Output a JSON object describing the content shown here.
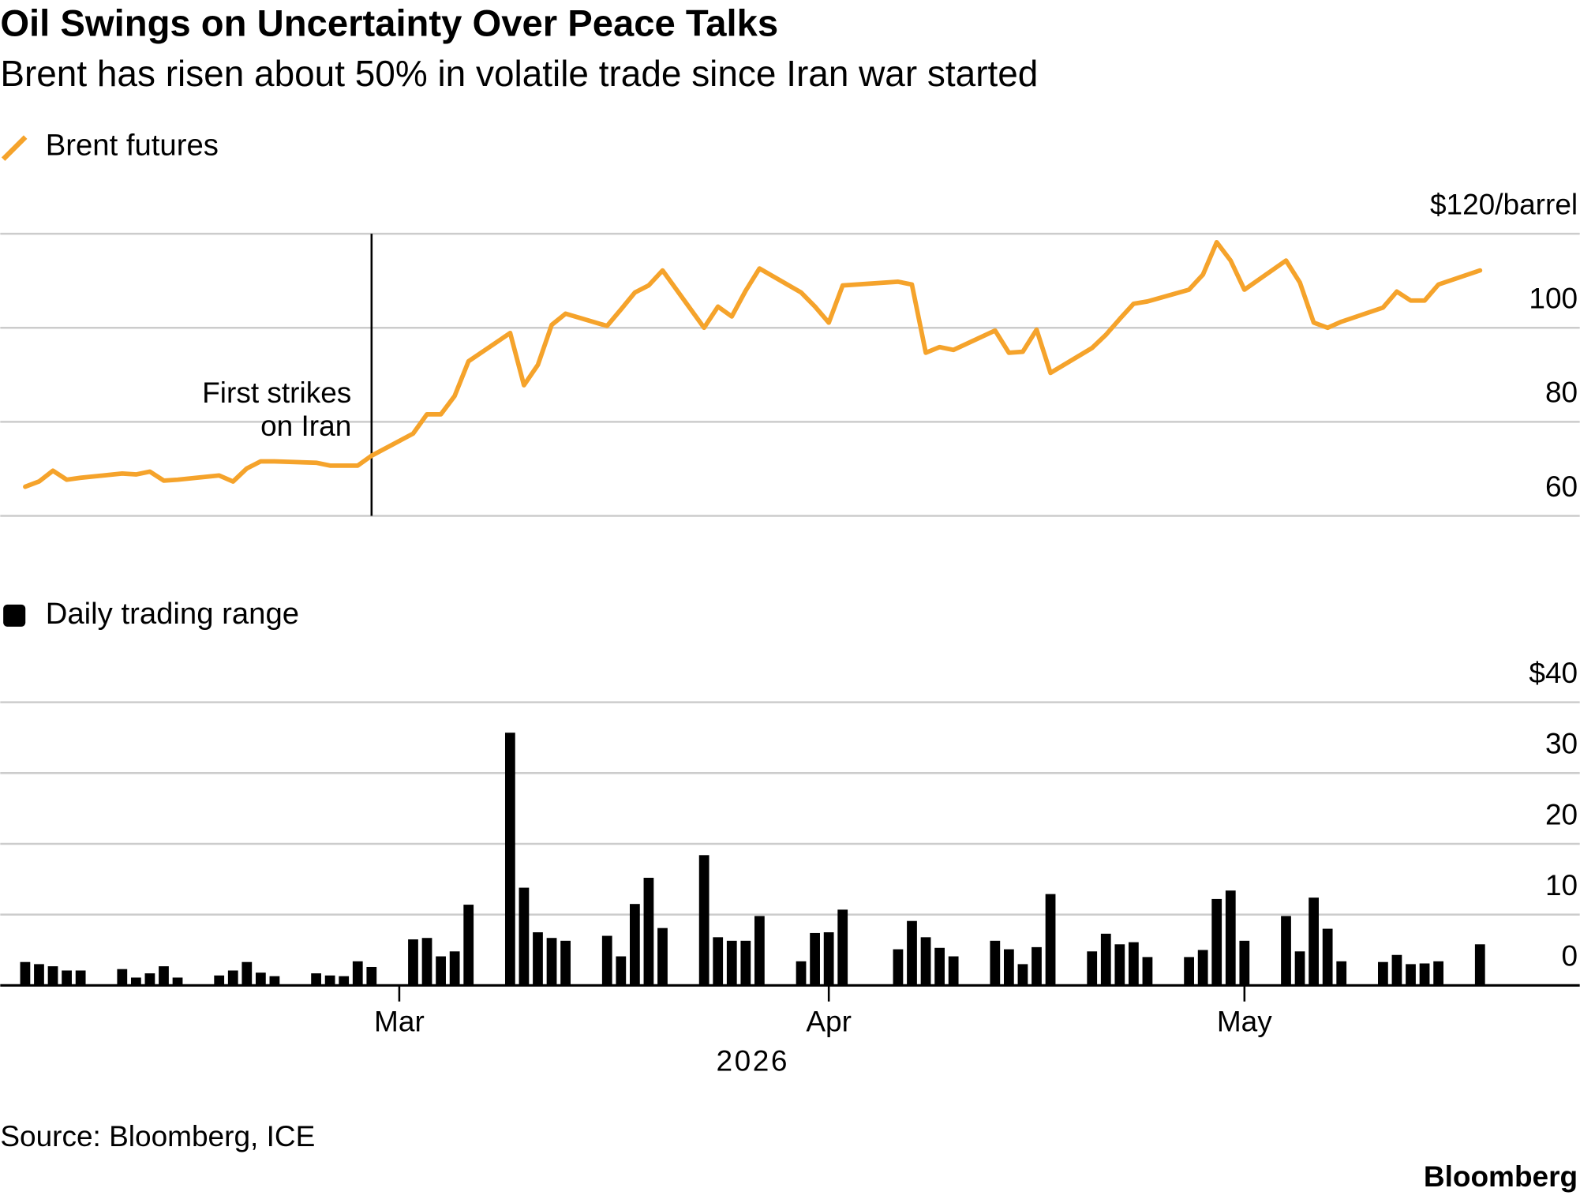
{
  "title": "Oil Swings on Uncertainty Over Peace Talks",
  "subtitle": "Brent has risen about 50% in volatile trade since Iran war started",
  "source": "Source: Bloomberg, ICE",
  "brand": "Bloomberg",
  "chart_data": [
    {
      "type": "line",
      "x": [
        33,
        34,
        35,
        36,
        37,
        40,
        41,
        42,
        43,
        44,
        47,
        48,
        49,
        50,
        51,
        54,
        55,
        56,
        57,
        58,
        61,
        62,
        63,
        64,
        65,
        68,
        69,
        70,
        71,
        72,
        75,
        76,
        77,
        78,
        79,
        82,
        83,
        84,
        85,
        86,
        89,
        90,
        91,
        92,
        96,
        97,
        98,
        99,
        100,
        103,
        104,
        105,
        106,
        107,
        110,
        111,
        112,
        113,
        114,
        117,
        118,
        119,
        120,
        121,
        124,
        125,
        126,
        127,
        128,
        131,
        132,
        133,
        134,
        135,
        138
      ],
      "series": [
        {
          "name": "Brent futures",
          "color": "#f5a32b",
          "values": [
            66.2,
            67.3,
            69.6,
            67.7,
            68.1,
            69.0,
            68.8,
            69.4,
            67.5,
            67.7,
            68.6,
            67.3,
            70.1,
            71.6,
            71.6,
            71.3,
            70.7,
            70.7,
            70.7,
            72.8,
            77.5,
            81.6,
            81.6,
            85.5,
            92.9,
            98.9,
            87.8,
            92.1,
            100.6,
            103.0,
            100.4,
            103.9,
            107.5,
            109.0,
            112.2,
            100.0,
            104.5,
            102.4,
            107.9,
            112.6,
            107.5,
            104.5,
            101.1,
            109.0,
            109.8,
            109.2,
            94.7,
            95.9,
            95.3,
            99.4,
            94.7,
            94.9,
            99.6,
            90.4,
            95.7,
            98.5,
            101.9,
            105.1,
            105.6,
            108.1,
            111.3,
            118.2,
            114.3,
            108.1,
            114.3,
            109.6,
            101.1,
            100.0,
            101.3,
            104.3,
            107.7,
            105.8,
            105.8,
            109.2,
            112.2
          ]
        }
      ],
      "xlim": [
        31.2,
        145.2
      ],
      "ylim": [
        60,
        120
      ],
      "yticks": [
        {
          "value": 120,
          "label": "$120/barrel"
        },
        100,
        80,
        60
      ],
      "grid": true,
      "annotation": {
        "x": 58,
        "lines": [
          "First strikes",
          "on Iran"
        ]
      }
    },
    {
      "type": "bar",
      "x": [
        33,
        34,
        35,
        36,
        37,
        40,
        41,
        42,
        43,
        44,
        47,
        48,
        49,
        50,
        51,
        54,
        55,
        56,
        57,
        58,
        61,
        62,
        63,
        64,
        65,
        68,
        69,
        70,
        71,
        72,
        75,
        76,
        77,
        78,
        79,
        82,
        83,
        84,
        85,
        86,
        89,
        90,
        91,
        92,
        96,
        97,
        98,
        99,
        100,
        103,
        104,
        105,
        106,
        107,
        110,
        111,
        112,
        113,
        114,
        117,
        118,
        119,
        120,
        121,
        124,
        125,
        126,
        127,
        128,
        131,
        132,
        133,
        134,
        135,
        138
      ],
      "series": [
        {
          "name": "Daily trading range",
          "color": "#000000",
          "values": [
            3.3,
            3.0,
            2.7,
            2.1,
            2.1,
            2.3,
            1.1,
            1.7,
            2.7,
            1.1,
            1.4,
            2.1,
            3.3,
            1.8,
            1.3,
            1.7,
            1.4,
            1.3,
            3.4,
            2.6,
            6.5,
            6.7,
            4.1,
            4.8,
            11.4,
            35.7,
            13.8,
            7.5,
            6.7,
            6.3,
            7.0,
            4.1,
            11.5,
            15.2,
            8.1,
            18.4,
            6.8,
            6.3,
            6.3,
            9.8,
            3.4,
            7.4,
            7.5,
            10.7,
            5.1,
            9.1,
            6.8,
            5.3,
            4.1,
            6.3,
            5.1,
            3.0,
            5.4,
            12.9,
            4.8,
            7.3,
            5.8,
            6.1,
            4.0,
            4.0,
            5.0,
            12.2,
            13.4,
            6.3,
            9.8,
            4.8,
            12.4,
            8.0,
            3.4,
            3.3,
            4.3,
            3.0,
            3.1,
            3.4,
            5.8
          ]
        }
      ],
      "xlim": [
        31.2,
        145.2
      ],
      "xticks": [
        {
          "value": 60,
          "label": "Mar"
        },
        {
          "value": 91,
          "label": "Apr"
        },
        {
          "value": 121,
          "label": "May"
        }
      ],
      "xlabel": "2026",
      "ylim": [
        0,
        40
      ],
      "yticks": [
        {
          "value": 40,
          "label": "$40"
        },
        30,
        20,
        10,
        0
      ],
      "grid": true
    }
  ]
}
